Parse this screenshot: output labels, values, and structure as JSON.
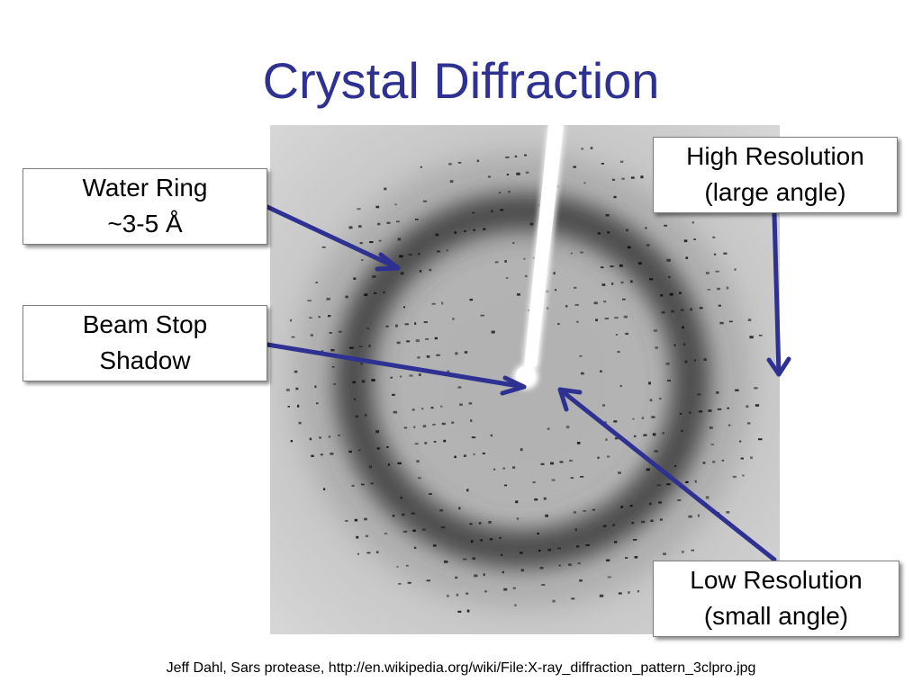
{
  "slide": {
    "title": "Crystal Diffraction",
    "credit": "Jeff Dahl, Sars protease, http://en.wikipedia.org/wiki/File:X-ray_diffraction_pattern_3clpro.jpg"
  },
  "callouts": {
    "water_ring": {
      "line1": "Water Ring",
      "line2": "~3-5 Å"
    },
    "beam_stop": {
      "line1": "Beam Stop",
      "line2": "Shadow"
    },
    "high_resolution": {
      "line1": "High Resolution",
      "line2": "(large angle)"
    },
    "low_resolution": {
      "line1": "Low Resolution",
      "line2": "(small angle)"
    }
  },
  "colors": {
    "title": "#2e3192",
    "arrow": "#2e3192",
    "pattern_background": "#c8c8c8",
    "water_ring": "#3a3a3a"
  }
}
